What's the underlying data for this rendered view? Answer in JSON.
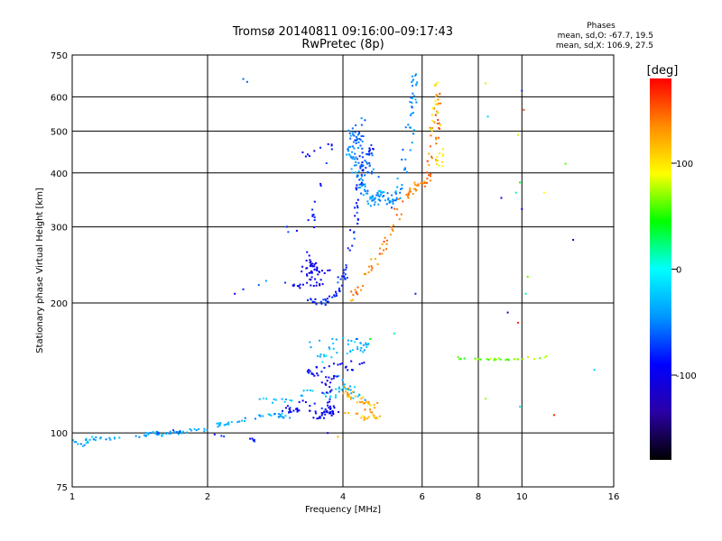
{
  "chart_data": {
    "type": "scatter",
    "title": "Tromsø 20140811 09:16:00–09:17:43",
    "subtitle": "RwPretec (8p)",
    "info": {
      "heading": "Phases",
      "line1": "mean, sd,O: -67.7, 19.5",
      "line2": "mean, sd,X: 106.9, 27.5"
    },
    "xlabel": "Frequency [MHz]",
    "ylabel": "Stationary phase Virtual Height [km]",
    "xscale": "log",
    "yscale": "log",
    "xlim": [
      1,
      16
    ],
    "ylim": [
      75,
      750
    ],
    "xticks": [
      1,
      2,
      4,
      6,
      8,
      10,
      16
    ],
    "yticks": [
      75,
      100,
      200,
      300,
      400,
      500,
      600,
      750
    ],
    "grid": true,
    "colorbar": {
      "label": "[deg]",
      "range": [
        -180,
        180
      ],
      "ticks": [
        -100,
        0,
        100
      ],
      "colors": [
        "#000000",
        "#2b00a6",
        "#0000ff",
        "#0096ff",
        "#00ffff",
        "#00ff00",
        "#ffff00",
        "#ff8c00",
        "#ff0000"
      ]
    },
    "clusters": [
      {
        "points": [
          [
            1.0,
            96
          ],
          [
            1.04,
            94
          ],
          [
            1.08,
            96
          ],
          [
            1.12,
            97
          ],
          [
            1.2,
            97
          ],
          [
            1.4,
            98
          ],
          [
            1.5,
            100
          ],
          [
            1.6,
            99
          ],
          [
            1.7,
            100
          ],
          [
            1.8,
            101
          ],
          [
            1.9,
            102
          ],
          [
            2.0,
            102
          ],
          [
            2.1,
            104
          ],
          [
            2.2,
            105
          ],
          [
            2.3,
            106
          ],
          [
            2.5,
            108
          ],
          [
            2.7,
            110
          ],
          [
            2.9,
            110
          ],
          [
            3.1,
            108
          ]
        ],
        "phase": -35,
        "n": 110,
        "sx": 0.015,
        "sy": 0.01
      },
      {
        "points": [
          [
            1.45,
            98
          ],
          [
            1.6,
            101
          ],
          [
            1.9,
            100
          ],
          [
            2.4,
            97
          ],
          [
            2.6,
            96
          ]
        ],
        "phase": -85,
        "n": 12,
        "sx": 0.02,
        "sy": 0.01
      },
      {
        "points": [
          [
            2.6,
            120
          ],
          [
            3.0,
            118
          ],
          [
            3.3,
            125
          ],
          [
            3.6,
            125
          ],
          [
            3.8,
            120
          ],
          [
            4.0,
            130
          ],
          [
            4.2,
            125
          ],
          [
            4.4,
            120
          ],
          [
            3.5,
            150
          ],
          [
            3.8,
            152
          ],
          [
            4.2,
            155
          ],
          [
            4.5,
            155
          ],
          [
            3.3,
            160
          ],
          [
            4.0,
            165
          ],
          [
            4.3,
            162
          ],
          [
            4.6,
            160
          ]
        ],
        "phase": -30,
        "n": 90,
        "sx": 0.025,
        "sy": 0.015
      },
      {
        "points": [
          [
            2.9,
            115
          ],
          [
            3.1,
            112
          ],
          [
            3.3,
            118
          ],
          [
            3.5,
            110
          ],
          [
            3.7,
            112
          ],
          [
            3.9,
            115
          ],
          [
            3.4,
            108
          ],
          [
            3.8,
            110
          ],
          [
            3.6,
            130
          ],
          [
            4.1,
            140
          ],
          [
            4.4,
            145
          ],
          [
            3.3,
            140
          ],
          [
            3.6,
            135
          ]
        ],
        "phase": -95,
        "n": 110,
        "sx": 0.03,
        "sy": 0.015
      },
      {
        "points": [
          [
            4.0,
            112
          ],
          [
            4.2,
            110
          ],
          [
            4.4,
            108
          ],
          [
            4.6,
            110
          ],
          [
            4.8,
            108
          ],
          [
            4.0,
            125
          ],
          [
            4.2,
            120
          ],
          [
            4.5,
            118
          ],
          [
            4.7,
            115
          ],
          [
            3.9,
            130
          ]
        ],
        "phase": 120,
        "n": 55,
        "sx": 0.025,
        "sy": 0.015
      },
      {
        "points": [
          [
            3.3,
            205
          ],
          [
            3.5,
            200
          ],
          [
            3.7,
            202
          ],
          [
            3.9,
            210
          ],
          [
            4.0,
            225
          ],
          [
            4.1,
            250
          ],
          [
            4.2,
            280
          ],
          [
            4.3,
            320
          ],
          [
            4.35,
            360
          ],
          [
            4.4,
            400
          ],
          [
            4.5,
            440
          ],
          [
            4.6,
            460
          ]
        ],
        "phase": -80,
        "n": 90,
        "sx": 0.02,
        "sy": 0.015
      },
      {
        "points": [
          [
            3.0,
            225
          ],
          [
            3.2,
            215
          ],
          [
            3.4,
            230
          ],
          [
            3.3,
            260
          ],
          [
            3.4,
            245
          ],
          [
            3.5,
            235
          ],
          [
            3.6,
            240
          ],
          [
            3.5,
            220
          ],
          [
            3.2,
            240
          ],
          [
            3.7,
            215
          ]
        ],
        "phase": -100,
        "n": 60,
        "sx": 0.03,
        "sy": 0.02
      },
      {
        "points": [
          [
            4.1,
            460
          ],
          [
            4.2,
            430
          ],
          [
            4.3,
            400
          ],
          [
            4.4,
            380
          ],
          [
            4.5,
            360
          ],
          [
            4.6,
            350
          ],
          [
            4.7,
            345
          ],
          [
            4.8,
            350
          ],
          [
            4.9,
            360
          ],
          [
            5.0,
            345
          ],
          [
            5.1,
            340
          ],
          [
            5.2,
            350
          ],
          [
            5.3,
            360
          ],
          [
            5.4,
            380
          ],
          [
            5.5,
            420
          ],
          [
            5.6,
            480
          ],
          [
            5.7,
            560
          ],
          [
            5.8,
            620
          ],
          [
            5.75,
            680
          ]
        ],
        "phase": -45,
        "n": 150,
        "sx": 0.02,
        "sy": 0.025
      },
      {
        "points": [
          [
            4.2,
            500
          ],
          [
            4.3,
            480
          ],
          [
            4.4,
            470
          ],
          [
            4.6,
            430
          ],
          [
            4.7,
            400
          ],
          [
            4.5,
            420
          ],
          [
            4.3,
            440
          ],
          [
            4.4,
            520
          ],
          [
            4.2,
            470
          ],
          [
            4.8,
            380
          ]
        ],
        "phase": -60,
        "n": 60,
        "sx": 0.03,
        "sy": 0.03
      },
      {
        "points": [
          [
            4.2,
            205
          ],
          [
            4.4,
            220
          ],
          [
            4.6,
            240
          ],
          [
            4.8,
            260
          ],
          [
            5.0,
            280
          ],
          [
            5.2,
            310
          ],
          [
            5.4,
            340
          ],
          [
            5.6,
            360
          ],
          [
            5.8,
            370
          ],
          [
            6.0,
            375
          ],
          [
            6.2,
            390
          ],
          [
            6.3,
            420
          ],
          [
            6.4,
            480
          ],
          [
            6.45,
            550
          ],
          [
            6.5,
            620
          ]
        ],
        "phase": 140,
        "n": 110,
        "sx": 0.02,
        "sy": 0.02
      },
      {
        "points": [
          [
            6.3,
            500
          ],
          [
            6.4,
            560
          ],
          [
            6.45,
            620
          ],
          [
            6.5,
            660
          ],
          [
            6.6,
            450
          ],
          [
            6.5,
            410
          ]
        ],
        "phase": 95,
        "n": 30,
        "sx": 0.015,
        "sy": 0.03
      },
      {
        "points": [
          [
            3.3,
            440
          ],
          [
            3.5,
            450
          ],
          [
            3.7,
            460
          ],
          [
            3.8,
            470
          ],
          [
            3.4,
            320
          ],
          [
            3.5,
            310
          ],
          [
            2.9,
            290
          ]
        ],
        "phase": -85,
        "n": 25,
        "sx": 0.015,
        "sy": 0.02
      },
      {
        "points": [
          [
            7.2,
            150
          ],
          [
            7.5,
            149
          ],
          [
            7.8,
            148
          ],
          [
            8.5,
            148
          ],
          [
            9.0,
            148
          ],
          [
            9.5,
            147
          ],
          [
            10.0,
            148
          ],
          [
            11.0,
            150
          ],
          [
            11.5,
            148
          ]
        ],
        "phase": 60,
        "n": 30,
        "sx": 0.02,
        "sy": 0.008
      }
    ],
    "isolated": [
      [
        2.4,
        660,
        -60
      ],
      [
        2.45,
        650,
        -60
      ],
      [
        8.3,
        645,
        80
      ],
      [
        8.4,
        540,
        -20
      ],
      [
        10.0,
        620,
        -80
      ],
      [
        10.1,
        560,
        160
      ],
      [
        9.8,
        490,
        80
      ],
      [
        9.9,
        380,
        40
      ],
      [
        9.7,
        360,
        20
      ],
      [
        9.0,
        350,
        -100
      ],
      [
        10.0,
        330,
        -100
      ],
      [
        11.2,
        360,
        90
      ],
      [
        12.5,
        420,
        60
      ],
      [
        13.0,
        280,
        -130
      ],
      [
        10.3,
        230,
        60
      ],
      [
        10.2,
        210,
        20
      ],
      [
        9.3,
        190,
        -120
      ],
      [
        9.8,
        180,
        170
      ],
      [
        8.3,
        120,
        70
      ],
      [
        9.9,
        115,
        -10
      ],
      [
        11.8,
        110,
        170
      ],
      [
        14.5,
        140,
        -20
      ],
      [
        5.2,
        170,
        20
      ],
      [
        4.3,
        165,
        -60
      ],
      [
        4.5,
        160,
        -40
      ],
      [
        4.6,
        165,
        40
      ],
      [
        3.7,
        100,
        -100
      ],
      [
        3.9,
        98,
        120
      ],
      [
        5.8,
        210,
        -80
      ],
      [
        2.3,
        210,
        -100
      ],
      [
        2.4,
        215,
        -80
      ],
      [
        2.6,
        220,
        -60
      ],
      [
        2.7,
        225,
        -40
      ]
    ]
  }
}
